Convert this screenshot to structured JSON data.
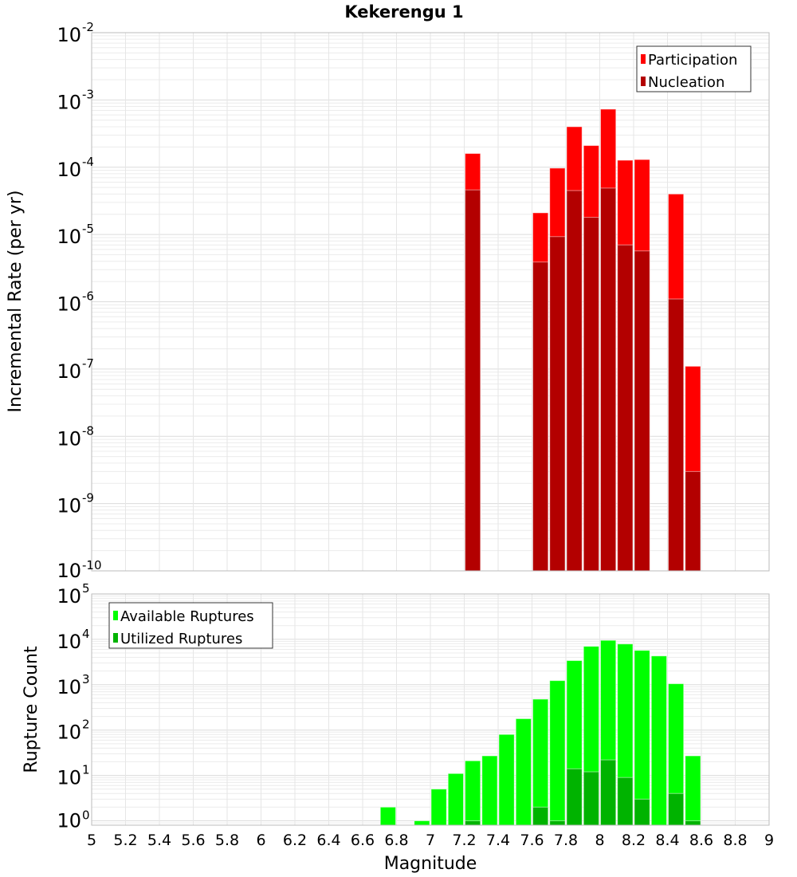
{
  "chart_data": [
    {
      "type": "bar",
      "title": "Kekerengu 1",
      "xlabel": "Magnitude",
      "ylabel": "Incremental Rate (per yr)",
      "yscale": "log",
      "ylim": [
        1e-10,
        0.01
      ],
      "xlim": [
        5,
        9
      ],
      "bin_width": 0.1,
      "y_tick_exponents": [
        "-2",
        "-3",
        "-4",
        "-5",
        "-6",
        "-7",
        "-8",
        "-9",
        "-10"
      ],
      "legend_position": "top-right",
      "x": [
        7.25,
        7.65,
        7.75,
        7.85,
        7.95,
        8.05,
        8.15,
        8.25,
        8.45,
        8.55
      ],
      "series": [
        {
          "name": "Participation",
          "color": "#ff0000",
          "values": [
            0.00016,
            2.1e-05,
            9.7e-05,
            0.0004,
            0.00021,
            0.00073,
            0.000127,
            0.00013,
            4e-05,
            1.1e-07
          ]
        },
        {
          "name": "Nucleation",
          "color": "#b30000",
          "values": [
            4.6e-05,
            3.9e-06,
            9.3e-06,
            4.5e-05,
            1.8e-05,
            4.9e-05,
            7e-06,
            5.7e-06,
            1.1e-06,
            3e-09
          ]
        }
      ]
    },
    {
      "type": "bar",
      "xlabel": "Magnitude",
      "ylabel": "Rupture Count",
      "yscale": "log",
      "ylim": [
        0.8,
        100000.0
      ],
      "xlim": [
        5,
        9
      ],
      "bin_width": 0.1,
      "y_tick_exponents": [
        "5",
        "4",
        "3",
        "2",
        "1",
        "0"
      ],
      "x_ticks": [
        "5",
        "5.2",
        "5.4",
        "5.6",
        "5.8",
        "6",
        "6.2",
        "6.4",
        "6.6",
        "6.8",
        "7",
        "7.2",
        "7.4",
        "7.6",
        "7.8",
        "8",
        "8.2",
        "8.4",
        "8.6",
        "8.8",
        "9"
      ],
      "legend_position": "top-left",
      "series": [
        {
          "name": "Available Ruptures",
          "color": "#00ff00",
          "x": [
            6.75,
            6.95,
            7.05,
            7.15,
            7.25,
            7.35,
            7.45,
            7.55,
            7.65,
            7.75,
            7.85,
            7.95,
            8.05,
            8.15,
            8.25,
            8.35,
            8.45,
            8.55
          ],
          "values": [
            2,
            1,
            5,
            11,
            21,
            27,
            80,
            178,
            480,
            1230,
            3400,
            7000,
            9500,
            7900,
            5700,
            4300,
            1050,
            27
          ]
        },
        {
          "name": "Utilized Ruptures",
          "color": "#00b300",
          "x": [
            7.25,
            7.65,
            7.75,
            7.85,
            7.95,
            8.05,
            8.15,
            8.25,
            8.45,
            8.55
          ],
          "values": [
            1,
            2,
            1,
            14,
            12,
            22,
            9,
            3,
            4,
            1
          ]
        }
      ]
    }
  ]
}
